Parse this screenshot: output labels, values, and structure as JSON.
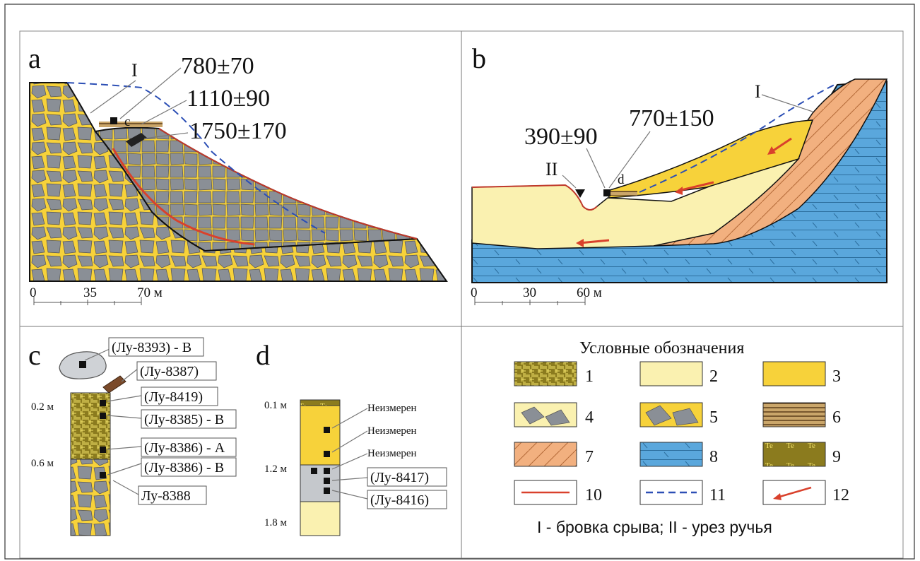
{
  "panel_a": {
    "letter": "a",
    "scarp_label": "I",
    "sample_mark": "c",
    "dates": [
      "780±70",
      "1110±90",
      "1750±170"
    ],
    "scale": {
      "ticks": [
        "0",
        "35",
        "70 м"
      ]
    }
  },
  "panel_b": {
    "letter": "b",
    "scarp_label": "I",
    "stream_label": "II",
    "sample_mark": "d",
    "dates": [
      "390±90",
      "770±150"
    ],
    "scale": {
      "ticks": [
        "0",
        "30",
        "60 м"
      ]
    }
  },
  "panel_c": {
    "letter": "c",
    "depths": [
      "0.2 м",
      "0.6 м"
    ],
    "samples": [
      "(Лу-8393) - В",
      "(Лу-8387)",
      "(Лу-8419)",
      "(Лу-8385) - В",
      "(Лу-8386) - А",
      "(Лу-8386) - В",
      "Лу-8388"
    ]
  },
  "panel_d": {
    "letter": "d",
    "depths": [
      "0.1 м",
      "1.2 м",
      "1.8 м"
    ],
    "unmeasured": [
      "Неизмерен",
      "Неизмерен",
      "Неизмерен"
    ],
    "samples": [
      "(Лу-8417)",
      "(Лу-8416)"
    ]
  },
  "legend": {
    "title": "Условные обозначения",
    "items": [
      {
        "num": "1",
        "pattern": "weave-olive"
      },
      {
        "num": "2",
        "pattern": "pale-yellow"
      },
      {
        "num": "3",
        "pattern": "yellow"
      },
      {
        "num": "4",
        "pattern": "blocks-pale"
      },
      {
        "num": "5",
        "pattern": "blocks-yellow"
      },
      {
        "num": "6",
        "pattern": "brown-stripes"
      },
      {
        "num": "7",
        "pattern": "orange-hatch"
      },
      {
        "num": "8",
        "pattern": "blue-bedrock"
      },
      {
        "num": "9",
        "pattern": "olive-dots"
      },
      {
        "num": "10",
        "pattern": "red-line"
      },
      {
        "num": "11",
        "pattern": "blue-dash"
      },
      {
        "num": "12",
        "pattern": "red-arrow"
      }
    ],
    "caption": "I - бровка срыва; II - урез ручья"
  },
  "colors": {
    "yellow": "#f7d23a",
    "pale_yellow": "#faf1b0",
    "gray_block": "#8a8f96",
    "blue": "#5aa7dc",
    "orange": "#f2b07f",
    "red": "#d9412c",
    "olive": "#8b7b1e"
  }
}
